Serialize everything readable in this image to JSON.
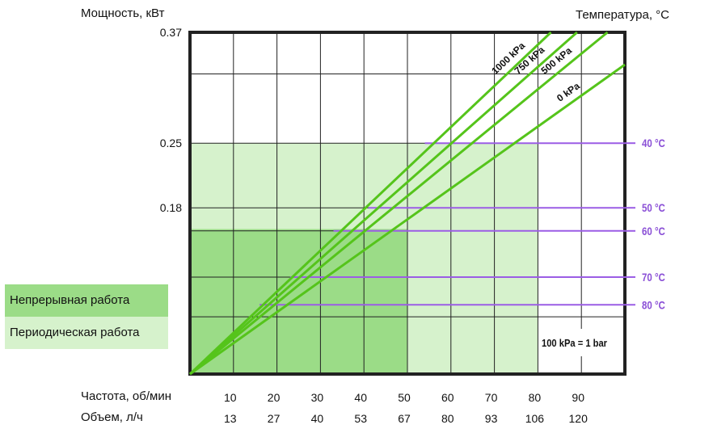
{
  "chart_data": {
    "type": "line",
    "ylabel": "Мощность, кВт",
    "y2label": "Температура, °C",
    "yticks": [
      "0.37",
      "0.25",
      "0.18"
    ],
    "xaxis_rows": [
      {
        "label": "Частота, об/мин",
        "ticks": [
          "10",
          "20",
          "30",
          "40",
          "50",
          "60",
          "70",
          "80",
          "90"
        ]
      },
      {
        "label": "Объем, л/ч",
        "ticks": [
          "13",
          "27",
          "40",
          "53",
          "67",
          "80",
          "93",
          "106",
          "120"
        ]
      }
    ],
    "xlim": [
      0,
      100
    ],
    "ylim": [
      0,
      0.37
    ],
    "series": [
      {
        "name": "1000 kPa",
        "x": [
          0,
          83
        ],
        "y": [
          0,
          0.37
        ]
      },
      {
        "name": "750 kPa",
        "x": [
          0,
          89
        ],
        "y": [
          0,
          0.37
        ]
      },
      {
        "name": "500 kPa",
        "x": [
          0,
          96
        ],
        "y": [
          0,
          0.37
        ]
      },
      {
        "name": "0 kPa",
        "x": [
          0,
          100
        ],
        "y": [
          0,
          0.335
        ]
      }
    ],
    "temperature_lines": [
      {
        "label": "40 °C",
        "y": 0.25,
        "x_from": 54
      },
      {
        "label": "50 °C",
        "y": 0.18,
        "x_from": 41
      },
      {
        "label": "60 °C",
        "y": 0.155,
        "x_from": 33
      },
      {
        "label": "70 °C",
        "y": 0.105,
        "x_from": 23
      },
      {
        "label": "80 °C",
        "y": 0.075,
        "x_from": 16
      }
    ],
    "regions": [
      {
        "name": "Непрерывная работа",
        "x": [
          0,
          50
        ],
        "y": [
          0,
          0.157
        ],
        "color": "#9bdc87"
      },
      {
        "name": "Периодическая работа",
        "x": [
          0,
          80
        ],
        "y": [
          0,
          0.25
        ],
        "color": "#d6f2cc"
      }
    ],
    "note": "100 kPa = 1 bar",
    "colors": {
      "lines": "#55c41b",
      "temperature": "#9b5de5",
      "grid": "#222222",
      "temp_text": "#8a4fd6"
    }
  }
}
